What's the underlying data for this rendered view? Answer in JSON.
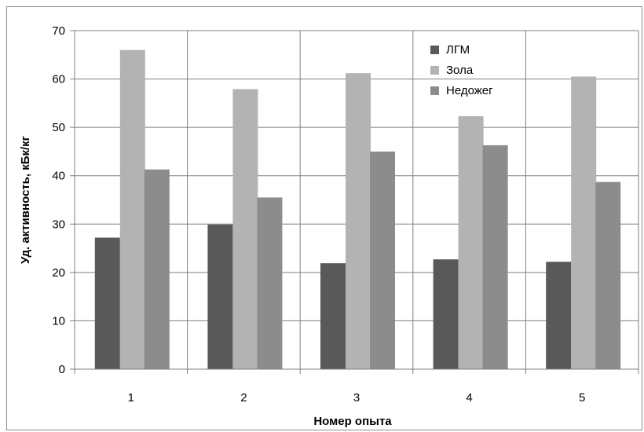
{
  "chart_data": {
    "type": "bar",
    "title": "",
    "xlabel": "Номер опыта",
    "ylabel": "Уд. активность,  кБк/кг",
    "categories": [
      "1",
      "2",
      "3",
      "4",
      "5"
    ],
    "series": [
      {
        "name": "ЛГМ",
        "color": "#595959",
        "values": [
          27.2,
          29.9,
          21.9,
          22.7,
          22.2
        ]
      },
      {
        "name": "Зола",
        "color": "#b3b3b3",
        "values": [
          66.0,
          57.9,
          61.2,
          52.3,
          60.5
        ]
      },
      {
        "name": "Недожег",
        "color": "#8c8c8c",
        "values": [
          41.3,
          35.5,
          45.0,
          46.3,
          38.7
        ]
      }
    ],
    "ylim": [
      0,
      70
    ],
    "yticks": [
      "0",
      "10",
      "20",
      "30",
      "40",
      "50",
      "60",
      "70"
    ],
    "grid": true,
    "legend_position": "top-right"
  }
}
